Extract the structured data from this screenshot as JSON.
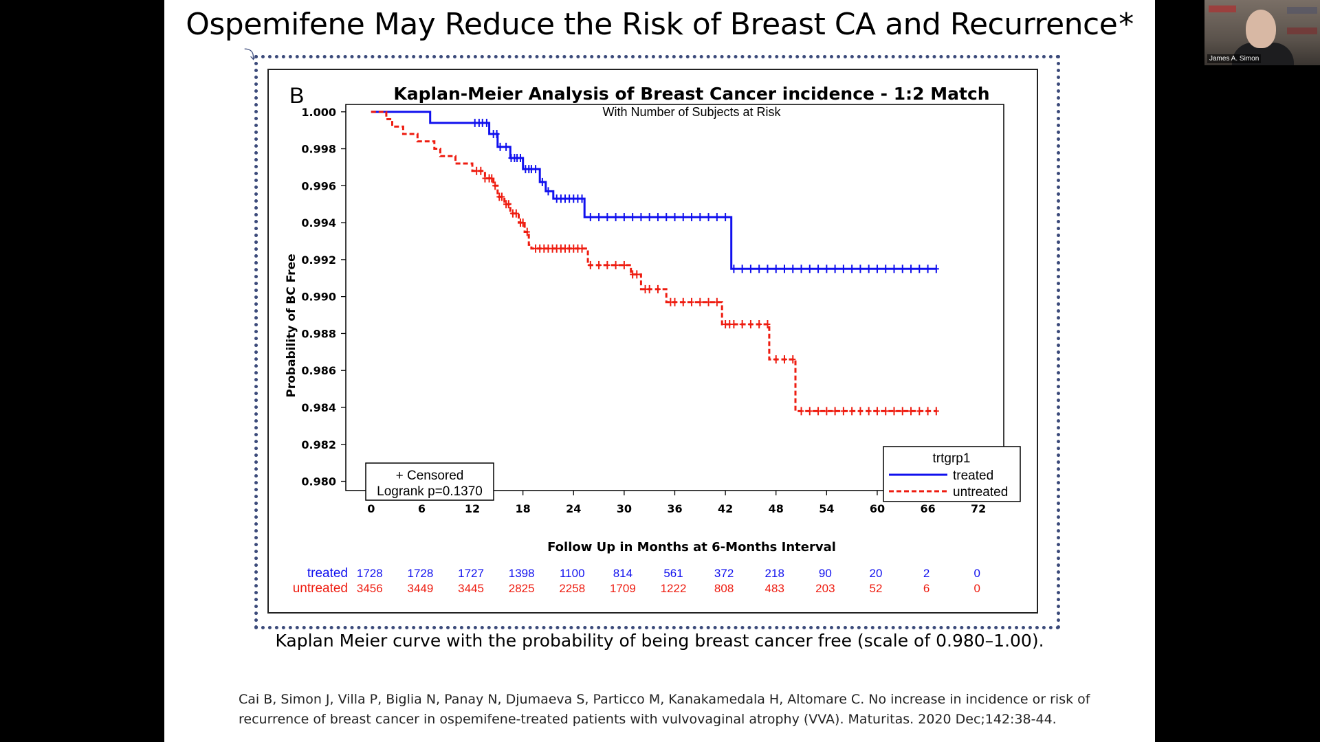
{
  "slide": {
    "title": "Ospemifene May Reduce the Risk of Breast CA and Recurrence",
    "title_star": "*",
    "caption": "Kaplan Meier curve with the probability of being breast cancer free (scale of 0.980–1.00).",
    "citation": "Cai B, Simon J, Villa P, Biglia N, Panay N, Djumaeva S, Particco M, Kanakamedala H, Altomare C. No increase in incidence or risk of recurrence of breast cancer in ospemifene-treated patients with vulvovaginal atrophy (VVA). Maturitas. 2020 Dec;142:38-44."
  },
  "webcam": {
    "name": "James A. Simon"
  },
  "chart_data": {
    "type": "line",
    "panel_label": "B",
    "title": "Kaplan-Meier Analysis of Breast Cancer incidence - 1:2 Match",
    "subtitle": "With Number of Subjects at Risk",
    "xlabel": "Follow Up in Months at 6-Months Interval",
    "ylabel": "Probability of BC Free",
    "xlim": [
      -3,
      75
    ],
    "ylim": [
      0.9795,
      1.0004
    ],
    "x_ticks": [
      0,
      6,
      12,
      18,
      24,
      30,
      36,
      42,
      48,
      54,
      60,
      66,
      72
    ],
    "y_ticks": [
      "1.000",
      "0.998",
      "0.996",
      "0.994",
      "0.992",
      "0.990",
      "0.988",
      "0.986",
      "0.984",
      "0.982",
      "0.980"
    ],
    "legend": {
      "title": "trtgrp1",
      "position": "bottom-right",
      "entries": [
        {
          "label": "treated",
          "color": "#1010ee",
          "style": "solid"
        },
        {
          "label": "untreated",
          "color": "#ee1c10",
          "style": "dashed"
        }
      ]
    },
    "annotation": {
      "position": "bottom-left",
      "censored": "+ Censored",
      "logrank": "Logrank p=0.1370"
    },
    "series": [
      {
        "name": "treated",
        "color": "#1010ee",
        "points": [
          [
            0,
            1.0
          ],
          [
            7,
            1.0
          ],
          [
            7,
            0.9994
          ],
          [
            14,
            0.9994
          ],
          [
            14,
            0.9988
          ],
          [
            15,
            0.9988
          ],
          [
            15,
            0.9981
          ],
          [
            16.5,
            0.9981
          ],
          [
            16.5,
            0.9975
          ],
          [
            18,
            0.9975
          ],
          [
            18,
            0.9969
          ],
          [
            20,
            0.9969
          ],
          [
            20,
            0.9962
          ],
          [
            20.7,
            0.9962
          ],
          [
            20.7,
            0.9957
          ],
          [
            21.6,
            0.9957
          ],
          [
            21.6,
            0.9953
          ],
          [
            25.3,
            0.9953
          ],
          [
            25.3,
            0.9943
          ],
          [
            42.7,
            0.9943
          ],
          [
            42.7,
            0.9915
          ],
          [
            67,
            0.9915
          ]
        ],
        "censor_x": [
          12.3,
          12.8,
          13.2,
          13.7,
          14.5,
          14.9,
          15.3,
          16,
          16.6,
          17,
          17.3,
          17.7,
          18.3,
          18.7,
          19,
          19.5,
          20.3,
          21,
          22,
          22.5,
          23,
          23.5,
          24,
          24.5,
          25,
          26,
          27,
          28,
          29,
          30,
          31,
          32,
          33,
          34,
          35,
          36,
          37,
          38,
          39,
          40,
          41,
          42,
          43,
          44,
          45,
          46,
          47,
          48,
          49,
          50,
          51,
          52,
          53,
          54,
          55,
          56,
          57,
          58,
          59,
          60,
          61,
          62,
          63,
          64,
          65,
          66,
          67
        ]
      },
      {
        "name": "untreated",
        "color": "#ee1c10",
        "points": [
          [
            0,
            1.0
          ],
          [
            1.8,
            1.0
          ],
          [
            1.8,
            0.9996
          ],
          [
            2.5,
            0.9996
          ],
          [
            2.5,
            0.9992
          ],
          [
            3.8,
            0.9992
          ],
          [
            3.8,
            0.9988
          ],
          [
            5.5,
            0.9988
          ],
          [
            5.5,
            0.9984
          ],
          [
            7.5,
            0.9984
          ],
          [
            7.5,
            0.998
          ],
          [
            8.2,
            0.998
          ],
          [
            8.2,
            0.9976
          ],
          [
            10,
            0.9976
          ],
          [
            10,
            0.9972
          ],
          [
            12,
            0.9972
          ],
          [
            12,
            0.9968
          ],
          [
            13.5,
            0.9968
          ],
          [
            13.5,
            0.9964
          ],
          [
            14.5,
            0.9964
          ],
          [
            14.5,
            0.996
          ],
          [
            15,
            0.996
          ],
          [
            15,
            0.9954
          ],
          [
            15.8,
            0.9954
          ],
          [
            15.8,
            0.995
          ],
          [
            16.5,
            0.995
          ],
          [
            16.5,
            0.9945
          ],
          [
            17.5,
            0.9945
          ],
          [
            17.5,
            0.994
          ],
          [
            18.2,
            0.994
          ],
          [
            18.2,
            0.9935
          ],
          [
            18.7,
            0.9935
          ],
          [
            18.7,
            0.9928
          ],
          [
            19,
            0.9928
          ],
          [
            19,
            0.9926
          ],
          [
            25.7,
            0.9926
          ],
          [
            25.7,
            0.9917
          ],
          [
            30.8,
            0.9917
          ],
          [
            30.8,
            0.9912
          ],
          [
            32,
            0.9912
          ],
          [
            32,
            0.9904
          ],
          [
            35,
            0.9904
          ],
          [
            35,
            0.9897
          ],
          [
            41.6,
            0.9897
          ],
          [
            41.6,
            0.9885
          ],
          [
            47.2,
            0.9885
          ],
          [
            47.2,
            0.9866
          ],
          [
            50.3,
            0.9866
          ],
          [
            50.3,
            0.9838
          ],
          [
            67,
            0.9838
          ]
        ],
        "censor_x": [
          12.5,
          13,
          13.5,
          14,
          14.3,
          14.7,
          15.2,
          15.5,
          16,
          16.3,
          16.8,
          17.2,
          17.7,
          18,
          18.5,
          19.5,
          20,
          20.5,
          21,
          21.5,
          22,
          22.5,
          23,
          23.5,
          24,
          24.5,
          25,
          26,
          27,
          28,
          29,
          30,
          31,
          31.5,
          32.5,
          33,
          34,
          35.5,
          36,
          37,
          38,
          39,
          40,
          41,
          42,
          42.5,
          43,
          44,
          45,
          46,
          47,
          48,
          49,
          50,
          51,
          52,
          53,
          54,
          55,
          56,
          57,
          58,
          59,
          60,
          61,
          62,
          63,
          64,
          65,
          66,
          67
        ]
      }
    ],
    "at_risk": {
      "months": [
        0,
        6,
        12,
        18,
        24,
        30,
        36,
        42,
        48,
        54,
        60,
        66,
        72
      ],
      "treated": [
        "1728",
        "1728",
        "1727",
        "1398",
        "1100",
        "814",
        "561",
        "372",
        "218",
        "90",
        "20",
        "2",
        "0"
      ],
      "untreated": [
        "3456",
        "3449",
        "3445",
        "2825",
        "2258",
        "1709",
        "1222",
        "808",
        "483",
        "203",
        "52",
        "6",
        "0"
      ]
    }
  }
}
